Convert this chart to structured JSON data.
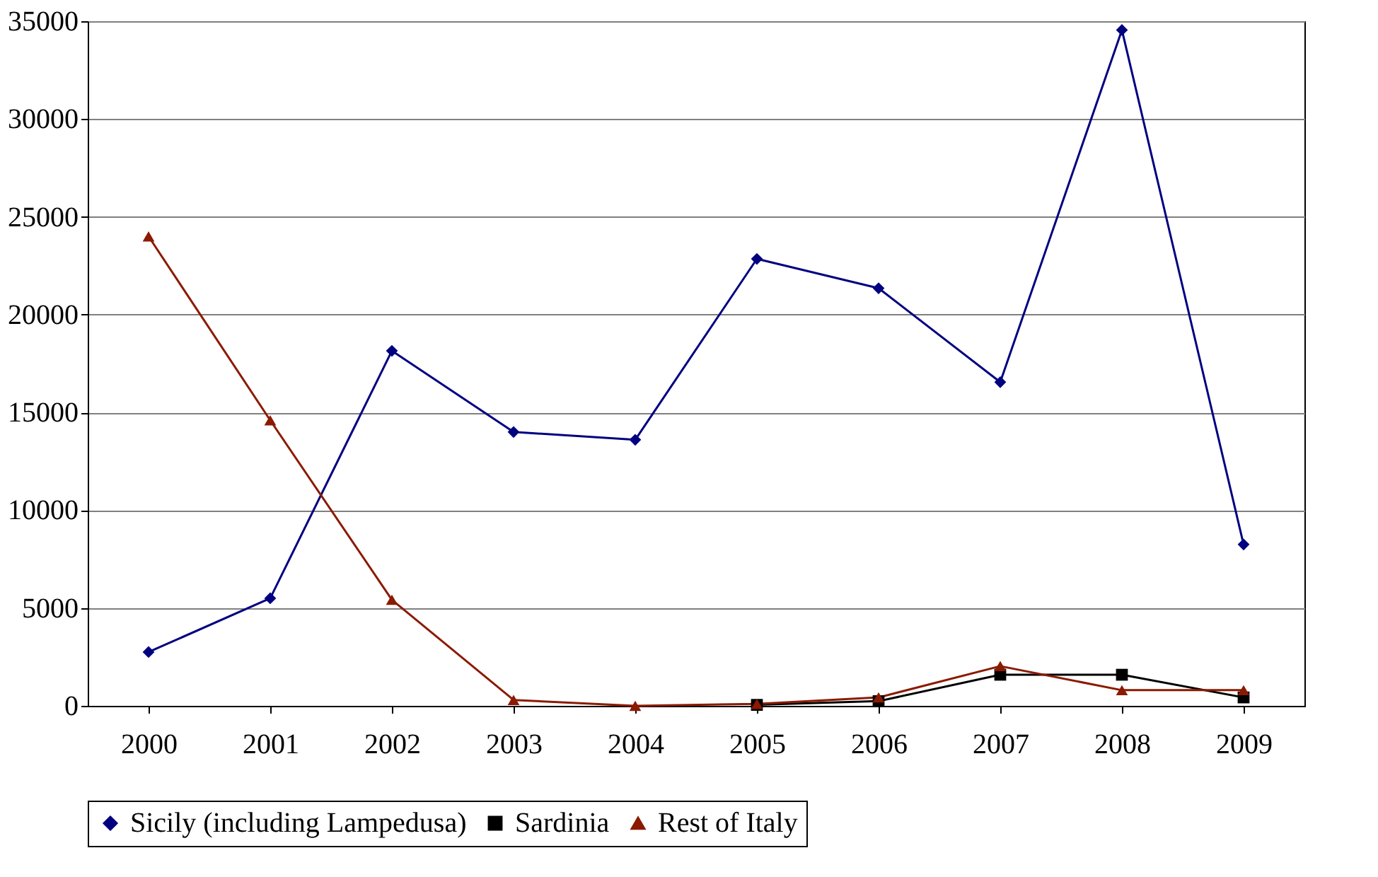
{
  "chart_data": {
    "type": "line",
    "categories": [
      "2000",
      "2001",
      "2002",
      "2003",
      "2004",
      "2005",
      "2006",
      "2007",
      "2008",
      "2009"
    ],
    "series": [
      {
        "name": "Sicily (including Lampedusa)",
        "color": "#000080",
        "marker": "diamond",
        "values": [
          2750,
          5500,
          18150,
          14000,
          13600,
          22850,
          21350,
          16550,
          34550,
          8250
        ]
      },
      {
        "name": "Sardinia",
        "color": "#000000",
        "marker": "square",
        "values": [
          null,
          null,
          null,
          null,
          null,
          50,
          240,
          1590,
          1590,
          430
        ]
      },
      {
        "name": "Rest of Italy",
        "color": "#8b1a00",
        "marker": "triangle",
        "values": [
          24000,
          14600,
          5420,
          300,
          0,
          100,
          430,
          2030,
          800,
          800
        ]
      }
    ],
    "ylim": [
      0,
      35000
    ],
    "yticks": [
      0,
      5000,
      10000,
      15000,
      20000,
      25000,
      30000,
      35000
    ],
    "grid": "y",
    "legend": "bottom",
    "line_style": "solid"
  }
}
